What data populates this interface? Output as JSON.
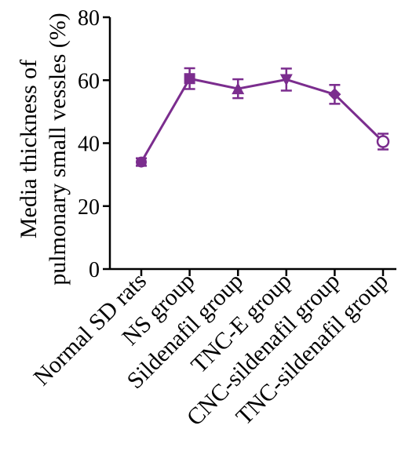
{
  "chart_data": {
    "type": "line",
    "title": "",
    "ylabel_lines": [
      "Media thickness of",
      "pulmonary small vessles (%)"
    ],
    "xlabel": "",
    "categories": [
      "Normal SD rats",
      "NS group",
      "Sildenafil group",
      "TNC-E group",
      "CNC-sildenafil group",
      "TNC-sildenafil group"
    ],
    "yticks": [
      "0",
      "20",
      "40",
      "60",
      "80"
    ],
    "ylim": [
      0,
      80
    ],
    "grid": false,
    "series": [
      {
        "values": [
          34,
          60.5,
          57.3,
          60.2,
          55.5,
          40.5
        ],
        "errors": [
          1.2,
          3.3,
          3.0,
          3.5,
          3.0,
          2.5
        ],
        "markers": [
          "circle",
          "square",
          "triangle-up",
          "triangle-down",
          "diamond",
          "circle-open"
        ],
        "color": "#7B2D8E"
      }
    ]
  }
}
